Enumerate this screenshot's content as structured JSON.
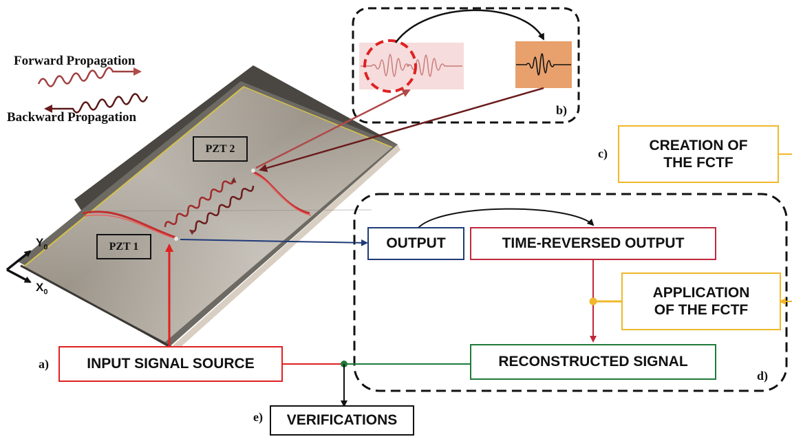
{
  "legend": {
    "forward_label": "Forward Propagation",
    "backward_label": "Backward Propagation"
  },
  "plate": {
    "pzt1_label": "PZT 1",
    "pzt2_label": "PZT 2",
    "axis_y": "Y",
    "axis_y_sub": "0",
    "axis_x": "X",
    "axis_x_sub": "0"
  },
  "panels": {
    "a": "a)",
    "b": "b)",
    "c": "c)",
    "d": "d)",
    "e": "e)"
  },
  "boxes": {
    "creation": [
      "CREATION OF",
      "THE FCTF"
    ],
    "output": "OUTPUT",
    "time_reversed": "TIME-REVERSED OUTPUT",
    "application": [
      "APPLICATION",
      "OF THE FCTF"
    ],
    "reconstructed": "RECONSTRUCTED SIGNAL",
    "input_source": "INPUT SIGNAL SOURCE",
    "verifications": "VERIFICATIONS"
  },
  "colors": {
    "red": "#e02020",
    "dark_red": "#c0283c",
    "navy": "#1f3a78",
    "gold": "#f0b82a",
    "green": "#1f7a3a",
    "maroon": "#6a1c1c",
    "waveform_bg": "#f6dcdc",
    "waveform2_bg": "#e8a06c"
  }
}
